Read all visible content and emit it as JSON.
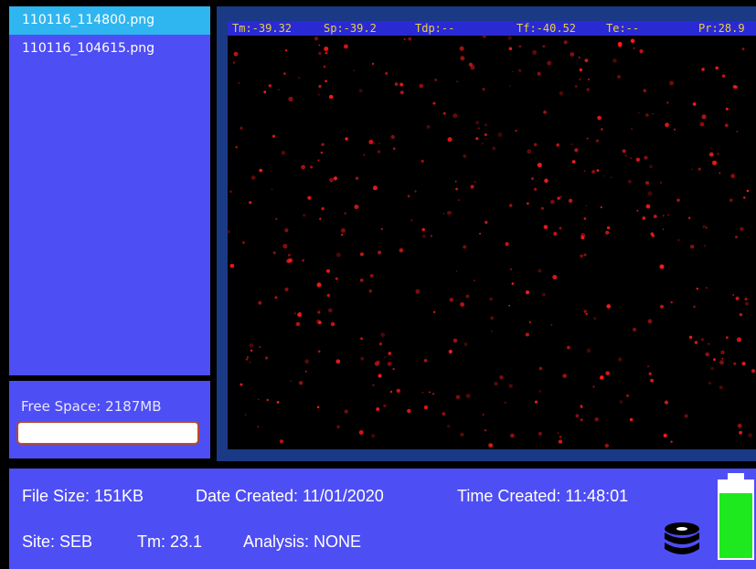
{
  "file_list": {
    "items": [
      {
        "label": "110116_114800.png",
        "selected": true
      },
      {
        "label": "110116_104615.png",
        "selected": false
      }
    ]
  },
  "storage": {
    "free_space": "Free Space: 2187MB"
  },
  "overlay": {
    "tm": "Tm:-39.32",
    "sp": "Sp:-39.2",
    "tdp": "Tdp:--",
    "tf": "Tf:-40.52",
    "te": "Te:--",
    "pr": "Pr:28.9"
  },
  "info": {
    "file_size": "File Size: 151KB",
    "date_created": "Date Created: 11/01/2020",
    "time_created": "Time Created: 11:48:01",
    "site": "Site: SEB",
    "tm": "Tm: 23.1",
    "analysis": "Analysis: NONE"
  },
  "icons": {
    "storage": "database-icon",
    "battery": "battery-icon"
  },
  "colors": {
    "panel": "#4e4ef5",
    "selected": "#2fb6f0",
    "overlay_text": "#e8d23a",
    "particle": "#ff1a1a",
    "battery_fill": "#1ee81e"
  }
}
